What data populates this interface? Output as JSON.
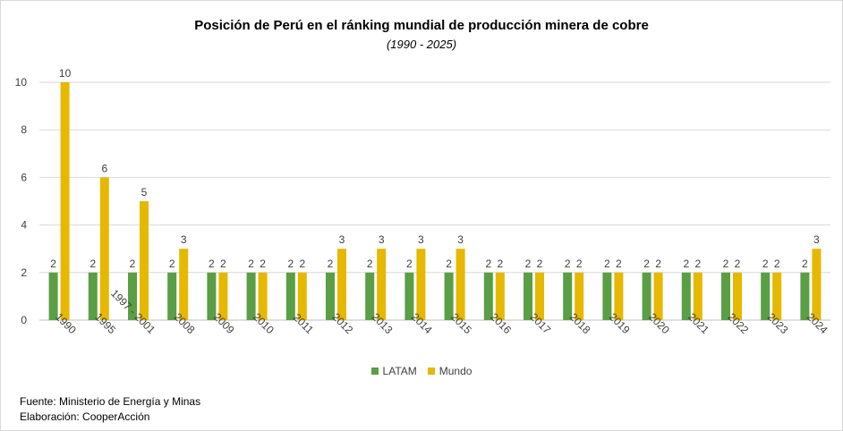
{
  "chart_data": {
    "type": "bar",
    "title": "Posición de Perú en el ránking mundial de producción minera de cobre",
    "subtitle": "(1990 - 2025)",
    "categories": [
      "1990",
      "1995",
      "1997 - 2001",
      "2008",
      "2009",
      "2010",
      "2011",
      "2012",
      "2013",
      "2014",
      "2015",
      "2016",
      "2017",
      "2018",
      "2019",
      "2020",
      "2021",
      "2022",
      "2023",
      "2024"
    ],
    "series": [
      {
        "name": "LATAM",
        "color": "#5a9e45",
        "values": [
          2,
          2,
          2,
          2,
          2,
          2,
          2,
          2,
          2,
          2,
          2,
          2,
          2,
          2,
          2,
          2,
          2,
          2,
          2,
          2
        ]
      },
      {
        "name": "Mundo",
        "color": "#e6b800",
        "values": [
          10,
          6,
          5,
          3,
          2,
          2,
          2,
          3,
          3,
          3,
          3,
          2,
          2,
          2,
          2,
          2,
          2,
          2,
          2,
          3
        ]
      }
    ],
    "yticks": [
      0,
      2,
      4,
      6,
      8,
      10
    ],
    "ylim": [
      0,
      10
    ],
    "xlabel": "",
    "ylabel": "",
    "grid": true,
    "legend": "bottom",
    "data_labels": true
  },
  "notes": {
    "source": "Fuente: Ministerio de Energía y Minas",
    "credit": "Elaboración: CooperAcción"
  }
}
